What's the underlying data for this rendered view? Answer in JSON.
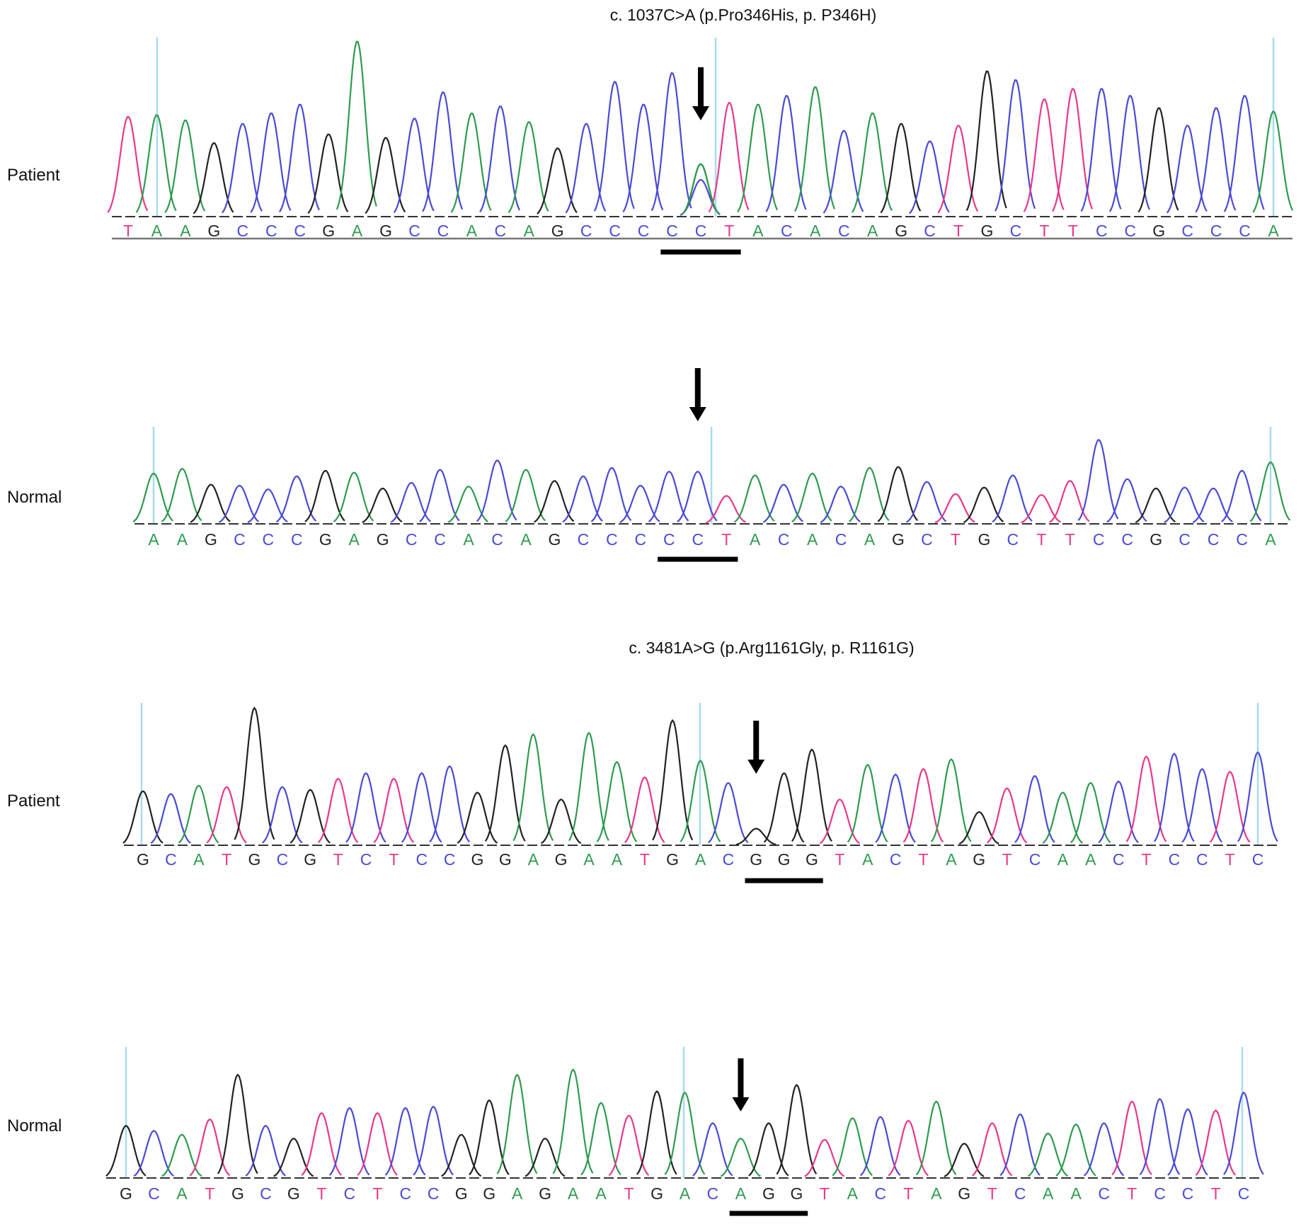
{
  "colors": {
    "A": "#2e9b4f",
    "C": "#4a4ad6",
    "G": "#222222",
    "T": "#e8388a",
    "marker": "#a8dcef",
    "bar": "#000000"
  },
  "panels": [
    {
      "label": "Patient",
      "title": "c. 1037C>A (p.Pro346His, p. P346H)",
      "sequence": "TAAGCCCGAGCCACAGCCCCCTACACAGCTGCTTCCGCCCA",
      "peak_heights": [
        0.57,
        0.58,
        0.55,
        0.42,
        0.53,
        0.59,
        0.64,
        0.47,
        1.0,
        0.45,
        0.56,
        0.71,
        0.59,
        0.63,
        0.54,
        0.39,
        0.53,
        0.77,
        0.64,
        0.82,
        0.21,
        0.65,
        0.64,
        0.69,
        0.74,
        0.49,
        0.59,
        0.53,
        0.43,
        0.52,
        0.83,
        0.78,
        0.67,
        0.73,
        0.73,
        0.69,
        0.62,
        0.52,
        0.62,
        0.69,
        0.6
      ],
      "secondary_peak": {
        "index": 20,
        "base": "A",
        "height": 0.3
      },
      "mutation_index": 20,
      "underline_range": [
        19,
        21
      ]
    },
    {
      "label": "Normal",
      "title": "",
      "sequence": "AAGCCCGAGCCACAGCCCCCTACACAGCTGCTTCCGCCCA",
      "peak_heights": [
        0.54,
        0.59,
        0.42,
        0.41,
        0.37,
        0.51,
        0.57,
        0.55,
        0.38,
        0.44,
        0.58,
        0.4,
        0.68,
        0.58,
        0.46,
        0.51,
        0.6,
        0.41,
        0.56,
        0.56,
        0.3,
        0.52,
        0.42,
        0.54,
        0.4,
        0.6,
        0.61,
        0.45,
        0.32,
        0.39,
        0.52,
        0.31,
        0.46,
        0.9,
        0.48,
        0.38,
        0.39,
        0.38,
        0.57,
        0.66
      ],
      "secondary_peak": null,
      "mutation_index": 19,
      "underline_range": [
        18,
        20
      ]
    },
    {
      "label": "Patient",
      "title": "c. 3481A>G (p.Arg1161Gly, p. R1161G)",
      "sequence": "GCATGCGTCTCCGGAGAATGACGGGTACTAGTCAACTCCTC",
      "peak_heights": [
        0.39,
        0.37,
        0.43,
        0.42,
        0.99,
        0.42,
        0.4,
        0.48,
        0.52,
        0.48,
        0.52,
        0.57,
        0.38,
        0.72,
        0.8,
        0.33,
        0.81,
        0.6,
        0.49,
        0.9,
        0.61,
        0.45,
        0.12,
        0.52,
        0.69,
        0.33,
        0.58,
        0.51,
        0.55,
        0.62,
        0.24,
        0.41,
        0.5,
        0.38,
        0.45,
        0.46,
        0.64,
        0.66,
        0.55,
        0.53,
        0.67
      ],
      "secondary_peak": null,
      "mutation_index": 22,
      "underline_range": [
        22,
        24
      ]
    },
    {
      "label": "Normal",
      "title": "",
      "sequence": "GCATGCGTCTCCGGAGAATGACAGGTACTAGTCAACTCCTC",
      "peak_heights": [
        0.41,
        0.37,
        0.34,
        0.46,
        0.81,
        0.41,
        0.31,
        0.51,
        0.55,
        0.51,
        0.55,
        0.56,
        0.34,
        0.61,
        0.81,
        0.31,
        0.85,
        0.59,
        0.49,
        0.68,
        0.67,
        0.43,
        0.31,
        0.43,
        0.73,
        0.3,
        0.47,
        0.48,
        0.45,
        0.6,
        0.27,
        0.43,
        0.5,
        0.35,
        0.42,
        0.43,
        0.6,
        0.62,
        0.54,
        0.53,
        0.67
      ],
      "secondary_peak": null,
      "mutation_index": 22,
      "underline_range": [
        22,
        24
      ]
    }
  ]
}
